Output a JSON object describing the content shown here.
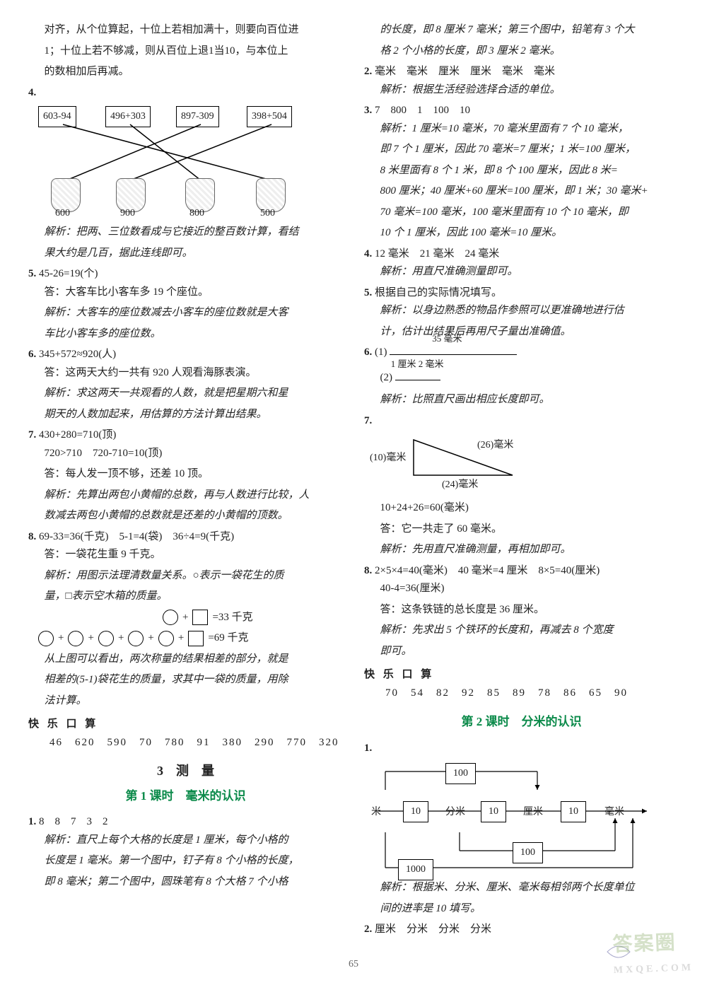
{
  "colors": {
    "text": "#222222",
    "lesson_green": "#0b8a4a",
    "watermark": "#88aa66",
    "page_bg": "#ffffff",
    "line": "#000000"
  },
  "left": {
    "intro1": "对齐，从个位算起，十位上若相加满十，则要向百位进",
    "intro2": "1；十位上若不够减，则从百位上退1当10，与本位上",
    "intro3": "的数相加后再减。",
    "q4": {
      "num": "4.",
      "top_boxes": [
        "603-94",
        "496+303",
        "897-309",
        "398+504"
      ],
      "bottom_labels": [
        "600",
        "900",
        "800",
        "500"
      ],
      "analysis": "解析：把两、三位数看成与它接近的整百数计算，看结",
      "analysis2": "果大约是几百，据此连线即可。"
    },
    "q5": {
      "num": "5.",
      "eq": "45-26=19(个)",
      "ans": "答：大客车比小客车多 19 个座位。",
      "analysis1": "解析：大客车的座位数减去小客车的座位数就是大客",
      "analysis2": "车比小客车多的座位数。"
    },
    "q6": {
      "num": "6.",
      "eq": "345+572≈920(人)",
      "ans": "答：这两天大约一共有 920 人观看海豚表演。",
      "analysis1": "解析：求这两天一共观看的人数，就是把星期六和星",
      "analysis2": "期天的人数加起来，用估算的方法计算出结果。"
    },
    "q7": {
      "num": "7.",
      "eq": "430+280=710(顶)",
      "cmp": "720>710　720-710=10(顶)",
      "ans": "答：每人发一顶不够，还差 10 顶。",
      "analysis1": "解析：先算出两包小黄帽的总数，再与人数进行比较，人",
      "analysis2": "数减去两包小黄帽的总数就是还差的小黄帽的顶数。"
    },
    "q8": {
      "num": "8.",
      "eq": "69-33=36(千克)　5-1=4(袋)　36÷4=9(千克)",
      "ans": "答：一袋花生重 9 千克。",
      "analysis1": "解析：用图示法理清数量关系。○表示一袋花生的质",
      "analysis2": "量，□表示空木箱的质量。",
      "row1_tail": "=33 千克",
      "row2_tail": "=69 千克",
      "post1": "从上图可以看出，两次称量的结果相差的部分，就是",
      "post2": "相差的(5-1)袋花生的质量，求其中一袋的质量，用除",
      "post3": "法计算。"
    },
    "happy_label": "快 乐 口 算",
    "happy_values": "46　620　590　70　780　91　380　290　770　320",
    "section3": "3　测　量",
    "lesson1": "第 1 课时　毫米的认识",
    "q1": {
      "num": "1.",
      "vals": "8　8　7　3　2",
      "a1": "解析：直尺上每个大格的长度是 1 厘米，每个小格的",
      "a2": "长度是 1 毫米。第一个图中，钉子有 8 个小格的长度，",
      "a3": "即 8 毫米；第二个图中，圆珠笔有 8 个大格 7 个小格"
    }
  },
  "right": {
    "cont1": "的长度，即 8 厘米 7 毫米；第三个图中，铅笔有 3 个大",
    "cont2": "格 2 个小格的长度，即 3 厘米 2 毫米。",
    "q2": {
      "num": "2.",
      "vals": "毫米　毫米　厘米　厘米　毫米　毫米",
      "a": "解析：根据生活经验选择合适的单位。"
    },
    "q3": {
      "num": "3.",
      "vals": "7　800　1　100　10",
      "a1": "解析：1 厘米=10 毫米，70 毫米里面有 7 个 10 毫米，",
      "a2": "即 7 个 1 厘米，因此 70 毫米=7 厘米；1 米=100 厘米，",
      "a3": "8 米里面有 8 个 1 米，即 8 个 100 厘米，因此 8 米=",
      "a4": "800 厘米；40 厘米+60 厘米=100 厘米，即 1 米；30 毫米+",
      "a5": "70 毫米=100 毫米，100 毫米里面有 10 个 10 毫米，即",
      "a6": "10 个 1 厘米，因此 100 毫米=10 厘米。"
    },
    "q4": {
      "num": "4.",
      "vals": "12 毫米　21 毫米　24 毫米",
      "a": "解析：用直尺准确测量即可。"
    },
    "q5": {
      "num": "5.",
      "vals": "根据自己的实际情况填写。",
      "a1": "解析：以身边熟悉的物品作参照可以更准确地进行估",
      "a2": "计，估计出结果后再用尺子量出准确值。"
    },
    "q6": {
      "num": "6.",
      "l1_label": "35 毫米",
      "l1_width": 180,
      "l2_label": "1 厘米 2 毫米",
      "l2_width": 64,
      "a": "解析：比照直尺画出相应长度即可。"
    },
    "q7": {
      "num": "7.",
      "side_left": "(10)毫米",
      "side_right": "(26)毫米",
      "side_bottom": "(24)毫米",
      "eq": "10+24+26=60(毫米)",
      "ans": "答：它一共走了 60 毫米。",
      "a": "解析：先用直尺准确测量，再相加即可。"
    },
    "q8": {
      "num": "8.",
      "eq": "2×5×4=40(毫米)　40 毫米=4 厘米　8×5=40(厘米)",
      "eq2": "40-4=36(厘米)",
      "ans": "答：这条铁链的总长度是 36 厘米。",
      "a1": "解析：先求出 5 个铁环的长度和，再减去 8 个宽度",
      "a2": "即可。"
    },
    "happy_label": "快 乐 口 算",
    "happy_values": "70　54　82　92　85　89　78　86　65　90",
    "lesson2": "第 2 课时　分米的认识",
    "q1b": {
      "num": "1.",
      "units": {
        "m": "米",
        "dm": "分米",
        "cm": "厘米",
        "mm": "毫米"
      },
      "boxes": {
        "top100": "100",
        "ten": "10",
        "hundred": "100",
        "thousand": "1000"
      },
      "a1": "解析：根据米、分米、厘米、毫米每相邻两个长度单位",
      "a2": "间的进率是 10 填写。"
    },
    "q2b": {
      "num": "2.",
      "vals": "厘米　分米　分米　分米"
    }
  },
  "page_number": "65",
  "watermark_main": "答案圈",
  "watermark_sub": "MXQE.COM"
}
